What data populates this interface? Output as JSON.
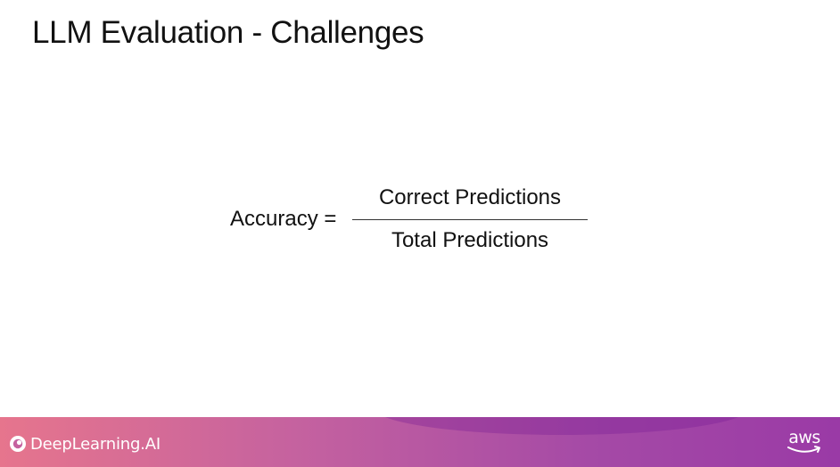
{
  "slide": {
    "title": "LLM Evaluation - Challenges"
  },
  "formula": {
    "lhs": "Accuracy =",
    "numerator": "Correct Predictions",
    "denominator": "Total Predictions"
  },
  "footer": {
    "brand": "DeepLearning.AI",
    "brand_icon": "deeplearning-logo-icon",
    "partner": "aws",
    "partner_icon": "aws-smile-icon",
    "colors": {
      "gradient_start": "#e6758d",
      "gradient_end": "#9a3aa6"
    }
  }
}
